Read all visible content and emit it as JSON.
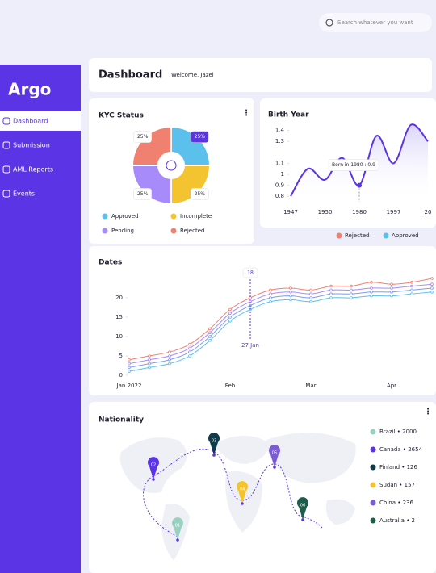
{
  "search": {
    "placeholder": "Search whatever you want"
  },
  "sidebar": {
    "logo": "Argo",
    "menu": [
      "Dashboard",
      "Submission",
      "AML Reports",
      "Events"
    ]
  },
  "header": {
    "title": "Dashboard",
    "welcome": "Welcome, Jazel"
  },
  "kyc": {
    "type": "pie",
    "title": "KYC Status",
    "categories": [
      "Approved",
      "Incomplete",
      "Pending",
      "Rejected"
    ],
    "values": [
      25,
      25,
      25,
      25
    ],
    "value_labels": [
      "25%",
      "25%",
      "25%",
      "25%"
    ],
    "colors": [
      "#5bc0eb",
      "#f4c430",
      "#a78bfa",
      "#f08070"
    ]
  },
  "birth_year": {
    "type": "line",
    "title": "Birth Year",
    "categories": [
      "1947",
      null,
      "1950",
      null,
      "1980",
      null,
      "1997",
      null,
      "20"
    ],
    "values": [
      0.8,
      1.05,
      0.95,
      1.15,
      0.9,
      1.35,
      1.1,
      1.45,
      1.3
    ],
    "color": "#5b34e6",
    "ylim": [
      0.75,
      1.5
    ],
    "yticks": [
      0.8,
      0.9,
      1.0,
      1.1,
      1.3,
      1.4
    ],
    "tooltip": "Born in 1980 : 0.9"
  },
  "dates": {
    "type": "line",
    "title": "Dates",
    "categories": [
      "Jan 2022",
      null,
      null,
      null,
      null,
      "Feb",
      null,
      null,
      null,
      "Mar",
      null,
      null,
      null,
      "Apr",
      null,
      null
    ],
    "series": [
      {
        "name": "Rejected",
        "color": "#f08070",
        "values": [
          4,
          5,
          6,
          8,
          12,
          17,
          20,
          22,
          22.5,
          22,
          23,
          23,
          24,
          23.5,
          24,
          25
        ]
      },
      {
        "color": "#a78bfa",
        "values": [
          3,
          4,
          5,
          7,
          11,
          16,
          19,
          21,
          21.5,
          21,
          22,
          22,
          22.5,
          22.5,
          23,
          23.5
        ]
      },
      {
        "color": "#7c9cf5",
        "values": [
          2,
          3,
          4,
          6,
          10,
          15,
          18,
          20,
          20.5,
          20,
          21,
          21,
          21.5,
          21.5,
          22,
          22.5
        ]
      },
      {
        "name": "Approved",
        "color": "#5bc0eb",
        "values": [
          1,
          2,
          3,
          5,
          9,
          14,
          17,
          19,
          19.5,
          19,
          20,
          20,
          20.5,
          20.5,
          21,
          21.5
        ]
      }
    ],
    "ylim": [
      0,
      25
    ],
    "yticks": [
      0,
      5,
      10,
      15,
      20
    ],
    "tooltip": {
      "x": "27 Jan",
      "y": 18
    }
  },
  "nationality": {
    "title": "Nationality",
    "pins": [
      {
        "label": "01",
        "color": "#9ad0c2"
      },
      {
        "label": "02",
        "color": "#5b34e6"
      },
      {
        "label": "03",
        "color": "#0f3b4a"
      },
      {
        "label": "04",
        "color": "#f4c430"
      },
      {
        "label": "05",
        "color": "#7b5cd6"
      },
      {
        "label": "06",
        "color": "#1e5e4a"
      }
    ],
    "legend": [
      {
        "text": "Brazil • 2000",
        "color": "#9ad0c2"
      },
      {
        "text": "Canada • 2654",
        "color": "#5b34e6"
      },
      {
        "text": "Finland • 126",
        "color": "#0f3b4a"
      },
      {
        "text": "Sudan • 157",
        "color": "#f4c430"
      },
      {
        "text": "China • 236",
        "color": "#7b5cd6"
      },
      {
        "text": "Australia • 2",
        "color": "#1e5e4a"
      }
    ]
  }
}
